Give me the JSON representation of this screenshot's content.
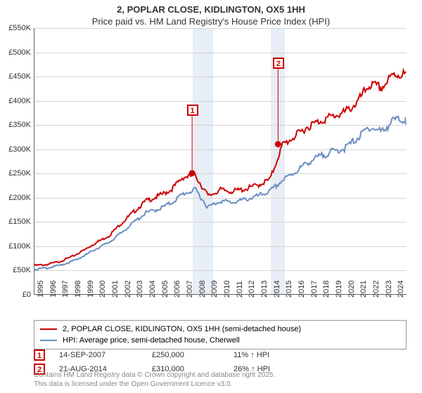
{
  "title": {
    "main": "2, POPLAR CLOSE, KIDLINGTON, OX5 1HH",
    "sub": "Price paid vs. HM Land Registry's House Price Index (HPI)",
    "fontsize": 13
  },
  "chart": {
    "type": "line",
    "x_years": [
      1995,
      1996,
      1997,
      1998,
      1999,
      2000,
      2001,
      2002,
      2003,
      2004,
      2005,
      2006,
      2007,
      2008,
      2009,
      2010,
      2011,
      2012,
      2013,
      2014,
      2015,
      2016,
      2017,
      2018,
      2019,
      2020,
      2021,
      2022,
      2023,
      2024
    ],
    "xlim": [
      1995,
      2025
    ],
    "ylim": [
      0,
      550
    ],
    "ytick_step": 50,
    "ylabel_prefix": "£",
    "ylabel_suffix": "K",
    "grid_color": "#d4d4d4",
    "background_color": "#ffffff",
    "shading": [
      {
        "from": 2007.71,
        "to": 2009.35,
        "color": "#d7e3ef"
      },
      {
        "from": 2014.0,
        "to": 2015.15,
        "color": "#d7e3ef"
      }
    ],
    "series": [
      {
        "name": "2, POPLAR CLOSE, KIDLINGTON, OX5 1HH (semi-detached house)",
        "color": "#cc0000",
        "line_width": 2,
        "values_k": [
          60,
          62,
          68,
          78,
          92,
          108,
          122,
          148,
          172,
          195,
          205,
          218,
          245,
          248,
          205,
          218,
          215,
          220,
          228,
          240,
          312,
          330,
          350,
          362,
          372,
          380,
          400,
          438,
          432,
          460
        ]
      },
      {
        "name": "HPI: Average price, semi-detached house, Cherwell",
        "color": "#6b8fc2",
        "line_width": 2,
        "values_k": [
          52,
          55,
          60,
          68,
          80,
          95,
          108,
          128,
          150,
          170,
          178,
          190,
          210,
          218,
          182,
          195,
          192,
          198,
          205,
          215,
          238,
          255,
          275,
          288,
          298,
          305,
          325,
          350,
          340,
          365
        ]
      }
    ],
    "points": [
      {
        "label": "1",
        "x": 2007.71,
        "y_k": 250,
        "color": "#cc0000",
        "box_offset_y_k": 130
      },
      {
        "label": "2",
        "x": 2014.64,
        "y_k": 310,
        "color": "#cc0000",
        "box_offset_y_k": 168
      }
    ]
  },
  "legend": {
    "border_color": "#999999"
  },
  "annotations": [
    {
      "label": "1",
      "color": "#cc0000",
      "date": "14-SEP-2007",
      "price": "£250,000",
      "delta": "11% ↑ HPI"
    },
    {
      "label": "2",
      "color": "#cc0000",
      "date": "21-AUG-2014",
      "price": "£310,000",
      "delta": "26% ↑ HPI"
    }
  ],
  "footer": {
    "line1": "Contains HM Land Registry data © Crown copyright and database right 2025.",
    "line2": "This data is licensed under the Open Government Licence v3.0."
  }
}
